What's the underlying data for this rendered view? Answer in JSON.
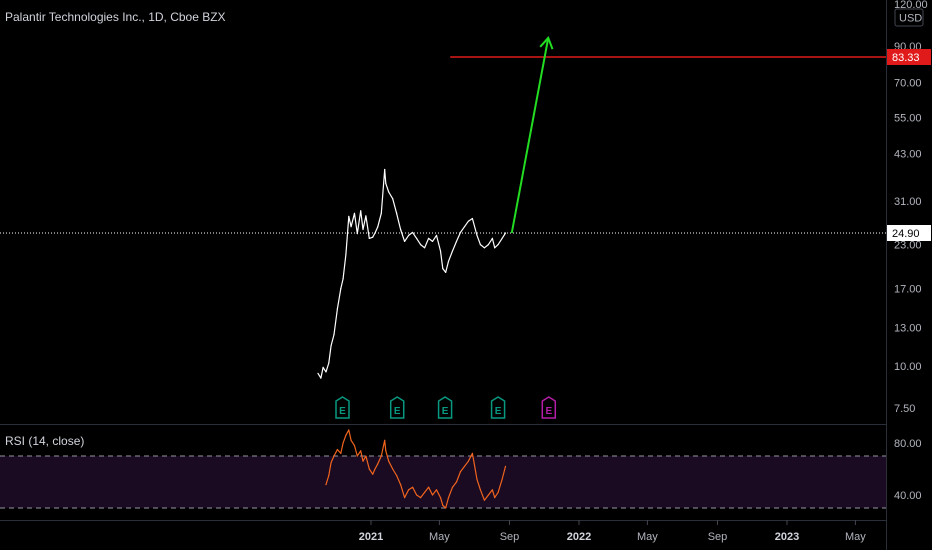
{
  "legend": {
    "title": "Palantir Technologies Inc., 1D, Cboe BZX"
  },
  "rsi": {
    "title": "RSI (14, close)"
  },
  "currency": "USD",
  "colors": {
    "background": "#000000",
    "price_line": "#ffffff",
    "red_level": "#e01a1a",
    "arrow": "#22dd22",
    "rsi_line": "#f0641e",
    "rsi_band": "#1a0a22",
    "earnings_past": "#089981",
    "earnings_future": "#b41ea8",
    "axis_text": "#b2b5be"
  },
  "chart_data": [
    {
      "type": "line",
      "scale": "log",
      "ylim": [
        6.8,
        125
      ],
      "xlim": [
        "2020-09-09",
        "2023-07-15"
      ],
      "y_ticks": [
        "120.00",
        "90.00",
        "70.00",
        "55.00",
        "43.00",
        "31.00",
        "23.00",
        "17.00",
        "13.00",
        "10.00",
        "7.50"
      ],
      "x_ticks": [
        {
          "label": "2021",
          "date": "2021-01-01",
          "bold": true
        },
        {
          "label": "May",
          "date": "2021-05-01"
        },
        {
          "label": "Sep",
          "date": "2021-09-01"
        },
        {
          "label": "2022",
          "date": "2022-01-01",
          "bold": true
        },
        {
          "label": "May",
          "date": "2022-05-01"
        },
        {
          "label": "Sep",
          "date": "2022-09-01"
        },
        {
          "label": "2023",
          "date": "2023-01-01",
          "bold": true
        },
        {
          "label": "May",
          "date": "2023-05-01"
        }
      ],
      "series": [
        {
          "x": [
            "2020-09-30",
            "2020-10-05",
            "2020-10-09",
            "2020-10-14",
            "2020-10-19",
            "2020-10-23",
            "2020-10-28",
            "2020-11-03",
            "2020-11-09",
            "2020-11-13",
            "2020-11-18",
            "2020-11-23",
            "2020-11-27",
            "2020-12-03",
            "2020-12-08",
            "2020-12-14",
            "2020-12-18",
            "2020-12-23",
            "2020-12-29",
            "2021-01-04",
            "2021-01-08",
            "2021-01-13",
            "2021-01-19",
            "2021-01-25",
            "2021-01-27",
            "2021-02-01",
            "2021-02-08",
            "2021-02-15",
            "2021-02-22",
            "2021-03-01",
            "2021-03-08",
            "2021-03-15",
            "2021-03-22",
            "2021-03-29",
            "2021-04-05",
            "2021-04-12",
            "2021-04-19",
            "2021-04-26",
            "2021-05-03",
            "2021-05-07",
            "2021-05-12",
            "2021-05-17",
            "2021-05-24",
            "2021-05-31",
            "2021-06-07",
            "2021-06-14",
            "2021-06-21",
            "2021-06-28",
            "2021-07-06",
            "2021-07-12",
            "2021-07-19",
            "2021-07-26",
            "2021-08-02",
            "2021-08-06",
            "2021-08-12",
            "2021-08-19",
            "2021-08-25"
          ],
          "values": [
            9.5,
            9.2,
            9.9,
            9.6,
            10.2,
            11.5,
            12.4,
            14.8,
            17.0,
            18.2,
            21.5,
            27.9,
            26.0,
            28.5,
            24.8,
            29.0,
            25.5,
            28.0,
            24.0,
            24.2,
            24.9,
            26.0,
            28.5,
            38.5,
            35.0,
            33.0,
            31.5,
            28.5,
            25.5,
            23.5,
            24.5,
            25.0,
            24.0,
            23.0,
            22.5,
            24.0,
            23.5,
            24.5,
            22.0,
            19.5,
            19.0,
            20.5,
            22.0,
            23.5,
            25.0,
            26.0,
            27.0,
            27.5,
            24.5,
            23.0,
            22.5,
            23.0,
            24.0,
            22.5,
            23.0,
            24.0,
            24.9
          ]
        }
      ],
      "annotations": [
        {
          "type": "hline",
          "value": 83.33,
          "label": "83.33",
          "x_start": "2021-05-20",
          "color": "#e01a1a"
        },
        {
          "type": "hline",
          "value": 24.9,
          "label": "24.90",
          "style": "dotted",
          "color": "#ffffff"
        },
        {
          "type": "arrow",
          "from": {
            "x": "2021-09-05",
            "y": 24.9
          },
          "to": {
            "x": "2021-11-08",
            "y": 95
          },
          "color": "#22dd22"
        }
      ],
      "earnings": [
        {
          "date": "2020-11-12",
          "label": "E",
          "past": true
        },
        {
          "date": "2021-02-16",
          "label": "E",
          "past": true
        },
        {
          "date": "2021-05-11",
          "label": "E",
          "past": true
        },
        {
          "date": "2021-08-12",
          "label": "E",
          "past": true
        },
        {
          "date": "2021-11-09",
          "label": "E",
          "past": false
        }
      ]
    },
    {
      "type": "line",
      "title": "RSI (14, close)",
      "ylim": [
        24,
        95
      ],
      "y_ticks": [
        "80.00",
        "40.00"
      ],
      "band": [
        30,
        70
      ],
      "series": [
        {
          "x": [
            "2020-10-14",
            "2020-10-19",
            "2020-10-23",
            "2020-10-28",
            "2020-11-03",
            "2020-11-09",
            "2020-11-13",
            "2020-11-18",
            "2020-11-23",
            "2020-11-27",
            "2020-12-03",
            "2020-12-08",
            "2020-12-14",
            "2020-12-18",
            "2020-12-23",
            "2020-12-29",
            "2021-01-04",
            "2021-01-08",
            "2021-01-13",
            "2021-01-19",
            "2021-01-25",
            "2021-01-27",
            "2021-02-01",
            "2021-02-08",
            "2021-02-15",
            "2021-02-22",
            "2021-03-01",
            "2021-03-08",
            "2021-03-15",
            "2021-03-22",
            "2021-03-29",
            "2021-04-05",
            "2021-04-12",
            "2021-04-19",
            "2021-04-26",
            "2021-05-03",
            "2021-05-07",
            "2021-05-12",
            "2021-05-17",
            "2021-05-24",
            "2021-05-31",
            "2021-06-07",
            "2021-06-14",
            "2021-06-21",
            "2021-06-28",
            "2021-07-06",
            "2021-07-12",
            "2021-07-19",
            "2021-07-26",
            "2021-08-02",
            "2021-08-06",
            "2021-08-12",
            "2021-08-19",
            "2021-08-25"
          ],
          "values": [
            48,
            55,
            65,
            70,
            75,
            72,
            80,
            86,
            90,
            82,
            78,
            70,
            74,
            66,
            70,
            60,
            56,
            60,
            64,
            70,
            82,
            74,
            66,
            60,
            55,
            48,
            38,
            44,
            46,
            40,
            38,
            42,
            46,
            40,
            44,
            38,
            32,
            30,
            38,
            46,
            50,
            58,
            62,
            66,
            72,
            52,
            44,
            36,
            40,
            44,
            38,
            42,
            52,
            62
          ]
        }
      ]
    }
  ]
}
